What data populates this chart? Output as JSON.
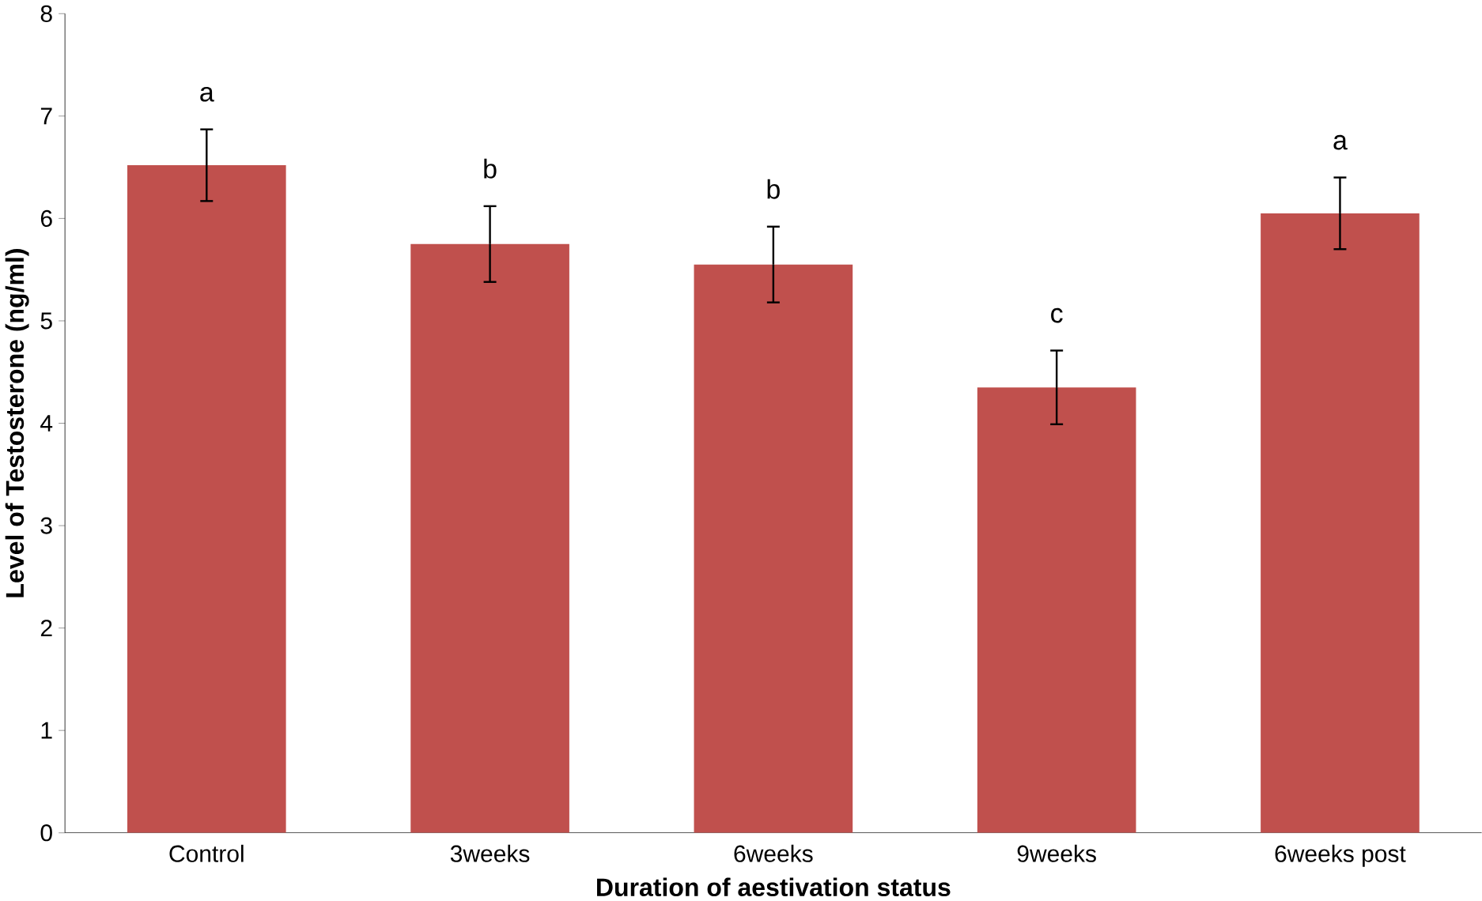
{
  "chart_data": {
    "type": "bar",
    "xlabel": "Duration of aestivation status",
    "ylabel": "Level of Testosterone (ng/ml)",
    "categories": [
      "Control",
      "3weeks",
      "6weeks",
      "9weeks",
      "6weeks post"
    ],
    "values": [
      6.52,
      5.75,
      5.55,
      4.35,
      6.05
    ],
    "errors": [
      0.35,
      0.37,
      0.37,
      0.36,
      0.35
    ],
    "color": "#c0504d",
    "ylim": [
      0,
      8
    ],
    "yticks": [
      0,
      1,
      2,
      3,
      4,
      5,
      6,
      7,
      8
    ],
    "annotations": [
      "a",
      "b",
      "b",
      "c",
      "a"
    ]
  }
}
